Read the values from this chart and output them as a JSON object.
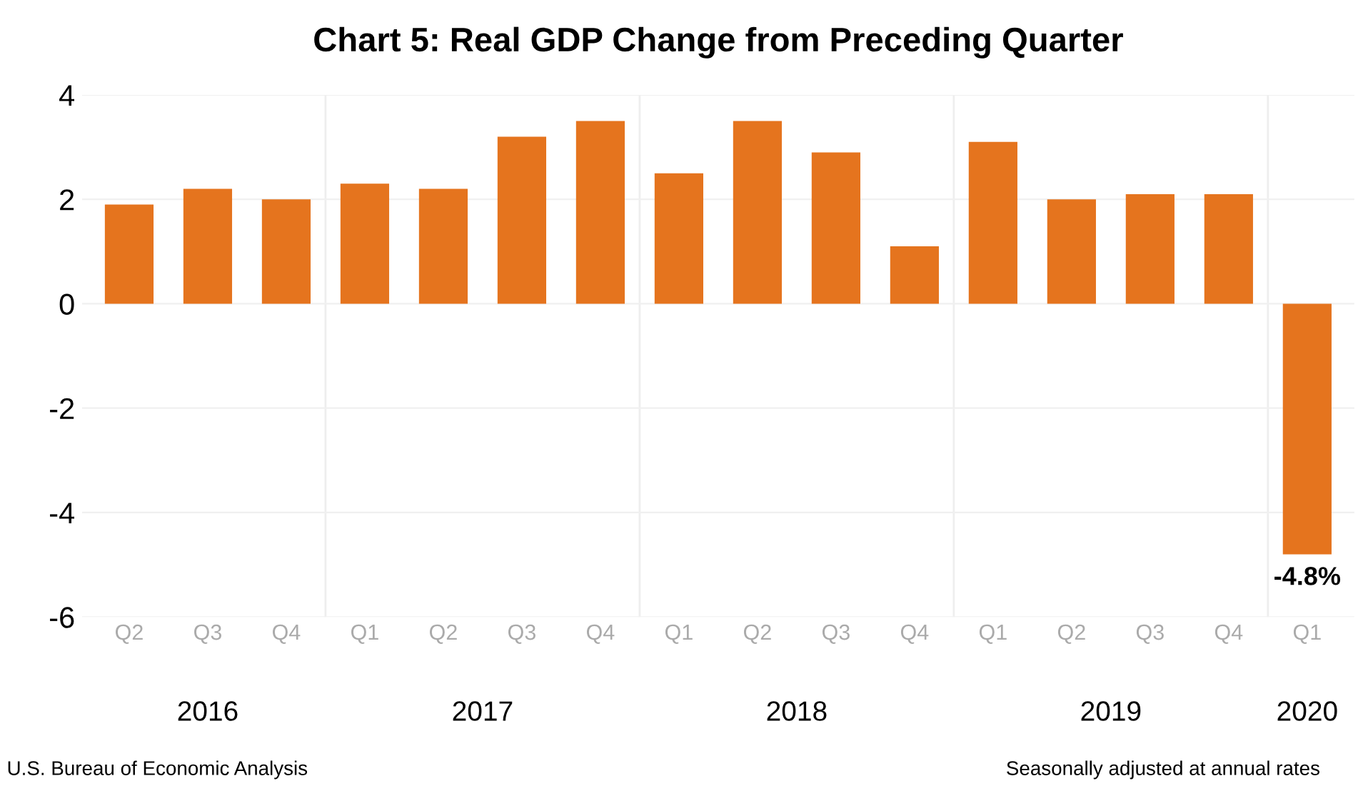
{
  "chart_data": {
    "type": "bar",
    "title": "Chart 5: Real GDP Change from Preceding Quarter",
    "categories": [
      "Q2",
      "Q3",
      "Q4",
      "Q1",
      "Q2",
      "Q3",
      "Q4",
      "Q1",
      "Q2",
      "Q3",
      "Q4",
      "Q1",
      "Q2",
      "Q3",
      "Q4",
      "Q1"
    ],
    "values": [
      1.9,
      2.2,
      2.0,
      2.3,
      2.2,
      3.2,
      3.5,
      2.5,
      3.5,
      2.9,
      1.1,
      3.1,
      2.0,
      2.1,
      2.1,
      -4.8
    ],
    "value_labels": [
      null,
      null,
      null,
      null,
      null,
      null,
      null,
      null,
      null,
      null,
      null,
      null,
      null,
      null,
      null,
      "-4.8%"
    ],
    "color": "#e5741e",
    "ylim": [
      -6,
      4
    ],
    "yticks": [
      -6,
      -4,
      -2,
      0,
      2,
      4
    ],
    "grid": "y",
    "annotations": [
      "2016",
      "2017",
      "2018",
      "2019",
      "2020",
      "U.S. Bureau of Economic Analysis",
      "Seasonally adjusted at annual rates"
    ]
  }
}
